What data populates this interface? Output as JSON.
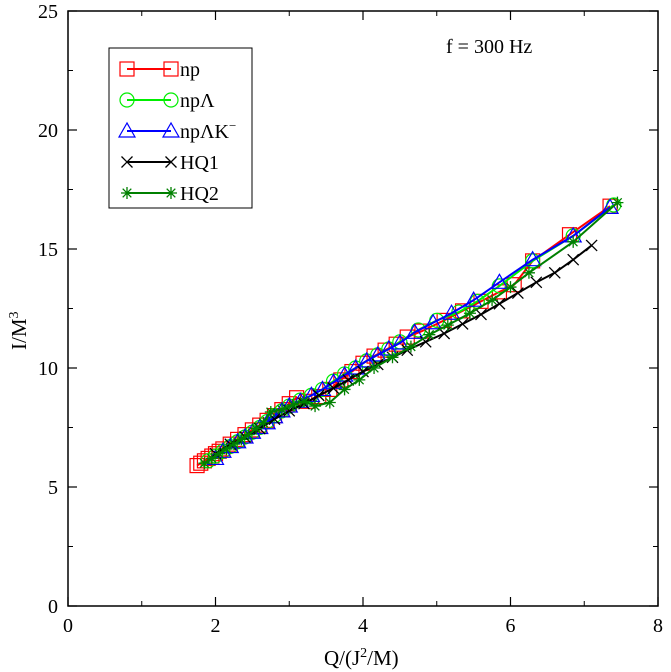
{
  "chart_data": {
    "type": "line",
    "title": "",
    "xlabel": {
      "base": "Q/(J",
      "sup": "2",
      "tail": "/M)"
    },
    "ylabel": {
      "base": "I/M",
      "sup": "3"
    },
    "xlim": [
      0,
      8
    ],
    "ylim": [
      0,
      25
    ],
    "xticks": [
      "0",
      "2",
      "4",
      "6",
      "8"
    ],
    "yticks": [
      "0",
      "5",
      "10",
      "15",
      "20",
      "25"
    ],
    "xtick_values": [
      0,
      2,
      4,
      6,
      8
    ],
    "ytick_values": [
      0,
      5,
      10,
      15,
      20,
      25
    ],
    "grid": false,
    "legend_position": "top-left",
    "annotation": "f =  300 Hz",
    "series": [
      {
        "name": "np",
        "name_sup": "",
        "color": "#ff0000",
        "marker": "square",
        "x": [
          1.75,
          1.8,
          1.85,
          1.9,
          1.95,
          2.0,
          2.05,
          2.1,
          2.2,
          2.3,
          2.4,
          2.5,
          2.6,
          2.7,
          2.8,
          2.9,
          3.0,
          3.1,
          3.25,
          3.4,
          3.55,
          3.7,
          3.85,
          4.0,
          4.15,
          4.3,
          4.45,
          4.6,
          4.8,
          5.1,
          5.35,
          5.6,
          5.85,
          6.05,
          6.3,
          6.8,
          7.35
        ],
        "y": [
          5.9,
          6.0,
          6.1,
          6.2,
          6.3,
          6.4,
          6.5,
          6.6,
          6.8,
          7.0,
          7.2,
          7.4,
          7.6,
          7.8,
          8.0,
          8.25,
          8.5,
          8.75,
          8.6,
          8.8,
          9.1,
          9.5,
          9.85,
          10.2,
          10.5,
          10.75,
          11.0,
          11.3,
          11.55,
          12.0,
          12.4,
          12.8,
          13.2,
          13.5,
          14.5,
          15.6,
          16.8
        ]
      },
      {
        "name": "npΛ",
        "name_sup": "",
        "color": "#00ee00",
        "marker": "circle",
        "x": [
          1.9,
          2.0,
          2.1,
          2.2,
          2.3,
          2.4,
          2.5,
          2.6,
          2.7,
          2.8,
          2.9,
          3.0,
          3.15,
          3.3,
          3.45,
          3.6,
          3.75,
          3.9,
          4.05,
          4.2,
          4.35,
          4.5,
          4.75,
          5.0,
          5.3,
          5.55,
          5.85,
          6.3,
          6.85,
          7.4
        ],
        "y": [
          6.1,
          6.3,
          6.5,
          6.7,
          6.9,
          7.1,
          7.3,
          7.5,
          7.75,
          8.0,
          8.2,
          8.4,
          8.65,
          8.85,
          9.1,
          9.45,
          9.75,
          10.0,
          10.3,
          10.55,
          10.8,
          11.1,
          11.6,
          12.0,
          12.35,
          12.8,
          13.45,
          14.5,
          15.55,
          16.85
        ]
      },
      {
        "name": "npΛK",
        "name_sup": "−",
        "color": "#0000ff",
        "marker": "triangle",
        "x": [
          2.0,
          2.1,
          2.2,
          2.3,
          2.4,
          2.5,
          2.6,
          2.7,
          2.8,
          2.9,
          3.0,
          3.15,
          3.3,
          3.45,
          3.6,
          3.75,
          3.9,
          4.05,
          4.2,
          4.35,
          4.5,
          4.7,
          4.95,
          5.2,
          5.5,
          5.85,
          6.3,
          6.85,
          7.35
        ],
        "y": [
          6.2,
          6.5,
          6.7,
          6.9,
          7.1,
          7.3,
          7.5,
          7.7,
          7.95,
          8.2,
          8.4,
          8.6,
          8.85,
          9.1,
          9.4,
          9.7,
          10.0,
          10.3,
          10.55,
          10.8,
          11.05,
          11.5,
          11.9,
          12.3,
          12.85,
          13.6,
          14.55,
          15.55,
          16.75
        ]
      },
      {
        "name": "HQ1",
        "name_sup": "",
        "color": "#000000",
        "marker": "x",
        "x": [
          2.0,
          2.2,
          2.4,
          2.6,
          2.8,
          3.0,
          3.2,
          3.4,
          3.6,
          3.8,
          4.0,
          4.2,
          4.4,
          4.6,
          4.85,
          5.1,
          5.35,
          5.6,
          5.85,
          6.1,
          6.35,
          6.6,
          6.85,
          7.1
        ],
        "y": [
          6.4,
          6.8,
          7.1,
          7.45,
          7.85,
          8.2,
          8.5,
          8.85,
          9.15,
          9.5,
          9.85,
          10.15,
          10.45,
          10.75,
          11.1,
          11.45,
          11.85,
          12.25,
          12.7,
          13.15,
          13.6,
          14.0,
          14.55,
          15.15
        ]
      },
      {
        "name": "HQ2",
        "name_sup": "",
        "color": "#008000",
        "marker": "asterisk",
        "x": [
          1.85,
          1.95,
          2.05,
          2.15,
          2.25,
          2.35,
          2.45,
          2.55,
          2.65,
          2.75,
          2.9,
          3.05,
          3.2,
          3.35,
          3.55,
          3.75,
          3.95,
          4.15,
          4.4,
          4.65,
          4.9,
          5.15,
          5.45,
          5.75,
          6.0,
          6.25,
          6.85,
          7.45
        ],
        "y": [
          6.0,
          6.2,
          6.4,
          6.6,
          6.8,
          7.0,
          7.2,
          7.45,
          7.7,
          8.15,
          8.25,
          8.45,
          8.6,
          8.4,
          8.55,
          9.1,
          9.5,
          10.0,
          10.45,
          10.9,
          11.4,
          11.8,
          12.3,
          12.85,
          13.4,
          14.0,
          15.3,
          16.95
        ]
      }
    ]
  }
}
